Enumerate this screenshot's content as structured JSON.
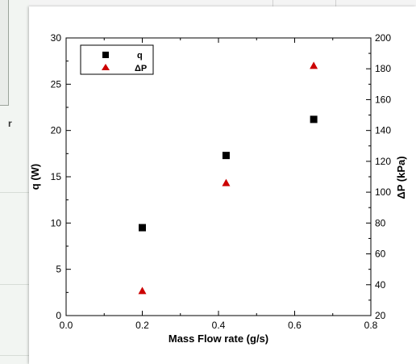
{
  "background": {
    "partial_letter": "r"
  },
  "chart_data": {
    "type": "scatter",
    "x": [
      0.2,
      0.42,
      0.65
    ],
    "xlabel": "Mass Flow rate (g/s)",
    "ylabel": "q (W)",
    "y2label": "ΔP (kPa)",
    "xlim": [
      0.0,
      0.8
    ],
    "ylim": [
      0,
      30
    ],
    "y2lim": [
      20,
      200
    ],
    "xticks": [
      "0.0",
      "0.2",
      "0.4",
      "0.6",
      "0.8"
    ],
    "yticks": [
      "0",
      "5",
      "10",
      "15",
      "20",
      "25",
      "30"
    ],
    "y2ticks": [
      "20",
      "40",
      "60",
      "80",
      "100",
      "120",
      "140",
      "160",
      "180",
      "200"
    ],
    "legend_position": "top-left",
    "grid": false,
    "series": [
      {
        "name": "q",
        "axis": "left",
        "marker": "square",
        "color": "#000000",
        "values": [
          9.5,
          17.3,
          21.2
        ]
      },
      {
        "name": "ΔP",
        "axis": "right",
        "marker": "triangle",
        "color": "#cc0000",
        "values": [
          36,
          106,
          182
        ]
      }
    ]
  }
}
